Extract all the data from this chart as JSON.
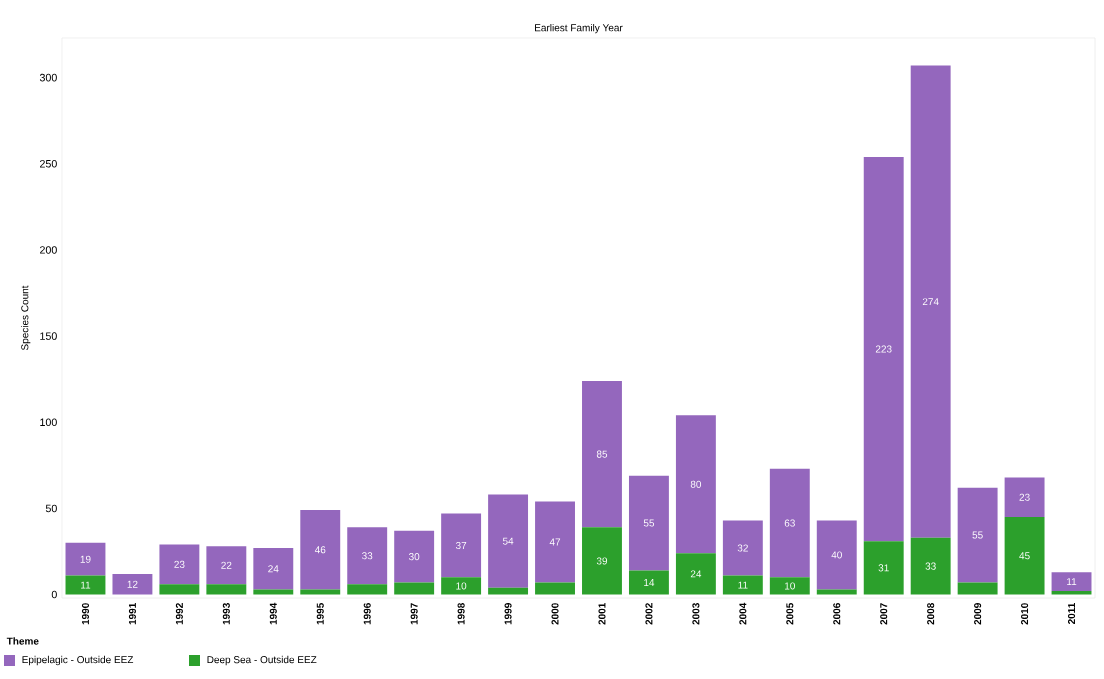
{
  "chart_data": {
    "type": "bar",
    "stacked": true,
    "title": "Earliest Family Year",
    "ylabel": "Species Count",
    "legend_title": "Theme",
    "legend": "bottom",
    "categories": [
      "1990",
      "1991",
      "1992",
      "1993",
      "1994",
      "1995",
      "1996",
      "1997",
      "1998",
      "1999",
      "2000",
      "2001",
      "2002",
      "2003",
      "2004",
      "2005",
      "2006",
      "2007",
      "2008",
      "2009",
      "2010",
      "2011"
    ],
    "series": [
      {
        "name": "Deep Sea - Outside EEZ",
        "color": "#2ca02c",
        "values": [
          11,
          0,
          6,
          6,
          3,
          3,
          6,
          7,
          10,
          4,
          7,
          39,
          14,
          24,
          11,
          10,
          3,
          31,
          33,
          7,
          45,
          2
        ],
        "value_labels": [
          "11",
          null,
          null,
          null,
          null,
          null,
          null,
          null,
          "10",
          null,
          null,
          "39",
          "14",
          "24",
          "11",
          "10",
          null,
          "31",
          "33",
          null,
          "45",
          null
        ]
      },
      {
        "name": "Epipelagic - Outside EEZ",
        "color": "#9467bd",
        "values": [
          19,
          12,
          23,
          22,
          24,
          46,
          33,
          30,
          37,
          54,
          47,
          85,
          55,
          80,
          32,
          63,
          40,
          223,
          274,
          55,
          23,
          11
        ],
        "value_labels": [
          "19",
          "12",
          "23",
          "22",
          "24",
          "46",
          "33",
          "30",
          "37",
          "54",
          "47",
          "85",
          "55",
          "80",
          "32",
          "63",
          "40",
          "223",
          "274",
          "55",
          "23",
          "11"
        ]
      }
    ],
    "ylim": [
      -2,
      323
    ],
    "yticks": [
      0,
      50,
      100,
      150,
      200,
      250,
      300
    ],
    "grid": false
  }
}
